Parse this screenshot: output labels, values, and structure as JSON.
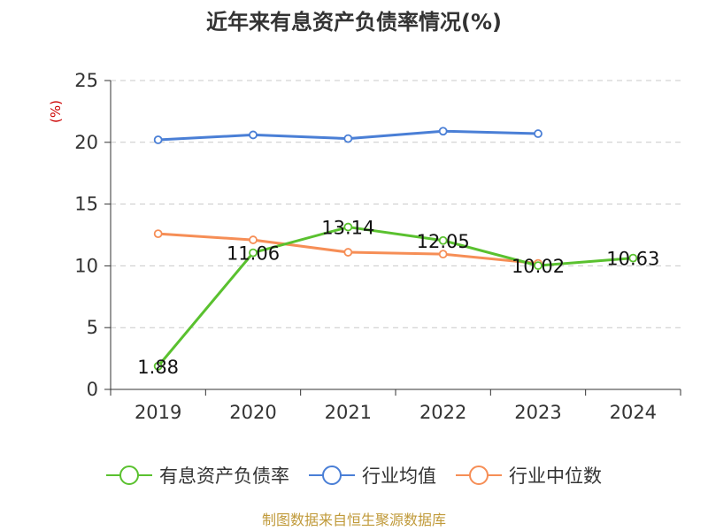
{
  "chart_data": {
    "type": "line",
    "title": "近年来有息资产负债率情况(%)",
    "y_unit": "(%)",
    "categories": [
      "2019",
      "2020",
      "2021",
      "2022",
      "2023",
      "2024"
    ],
    "ylim": [
      0,
      25
    ],
    "yticks": [
      0,
      5,
      10,
      15,
      20,
      25
    ],
    "grid": true,
    "legend_position": "bottom",
    "series": [
      {
        "name": "有息资产负债率",
        "color": "#5ac12f",
        "values": [
          1.88,
          11.06,
          13.14,
          12.05,
          10.02,
          10.63
        ],
        "show_labels": true
      },
      {
        "name": "行业均值",
        "color": "#4a7fd6",
        "values": [
          20.2,
          20.6,
          20.3,
          20.9,
          20.7,
          null
        ],
        "show_labels": false
      },
      {
        "name": "行业中位数",
        "color": "#f68e56",
        "values": [
          12.6,
          12.1,
          11.1,
          10.95,
          10.2,
          null
        ],
        "show_labels": false
      }
    ],
    "data_labels": [
      "1.88",
      "11.06",
      "13.14",
      "12.05",
      "10.02",
      "10.63"
    ]
  },
  "source": "制图数据来自恒生聚源数据库"
}
